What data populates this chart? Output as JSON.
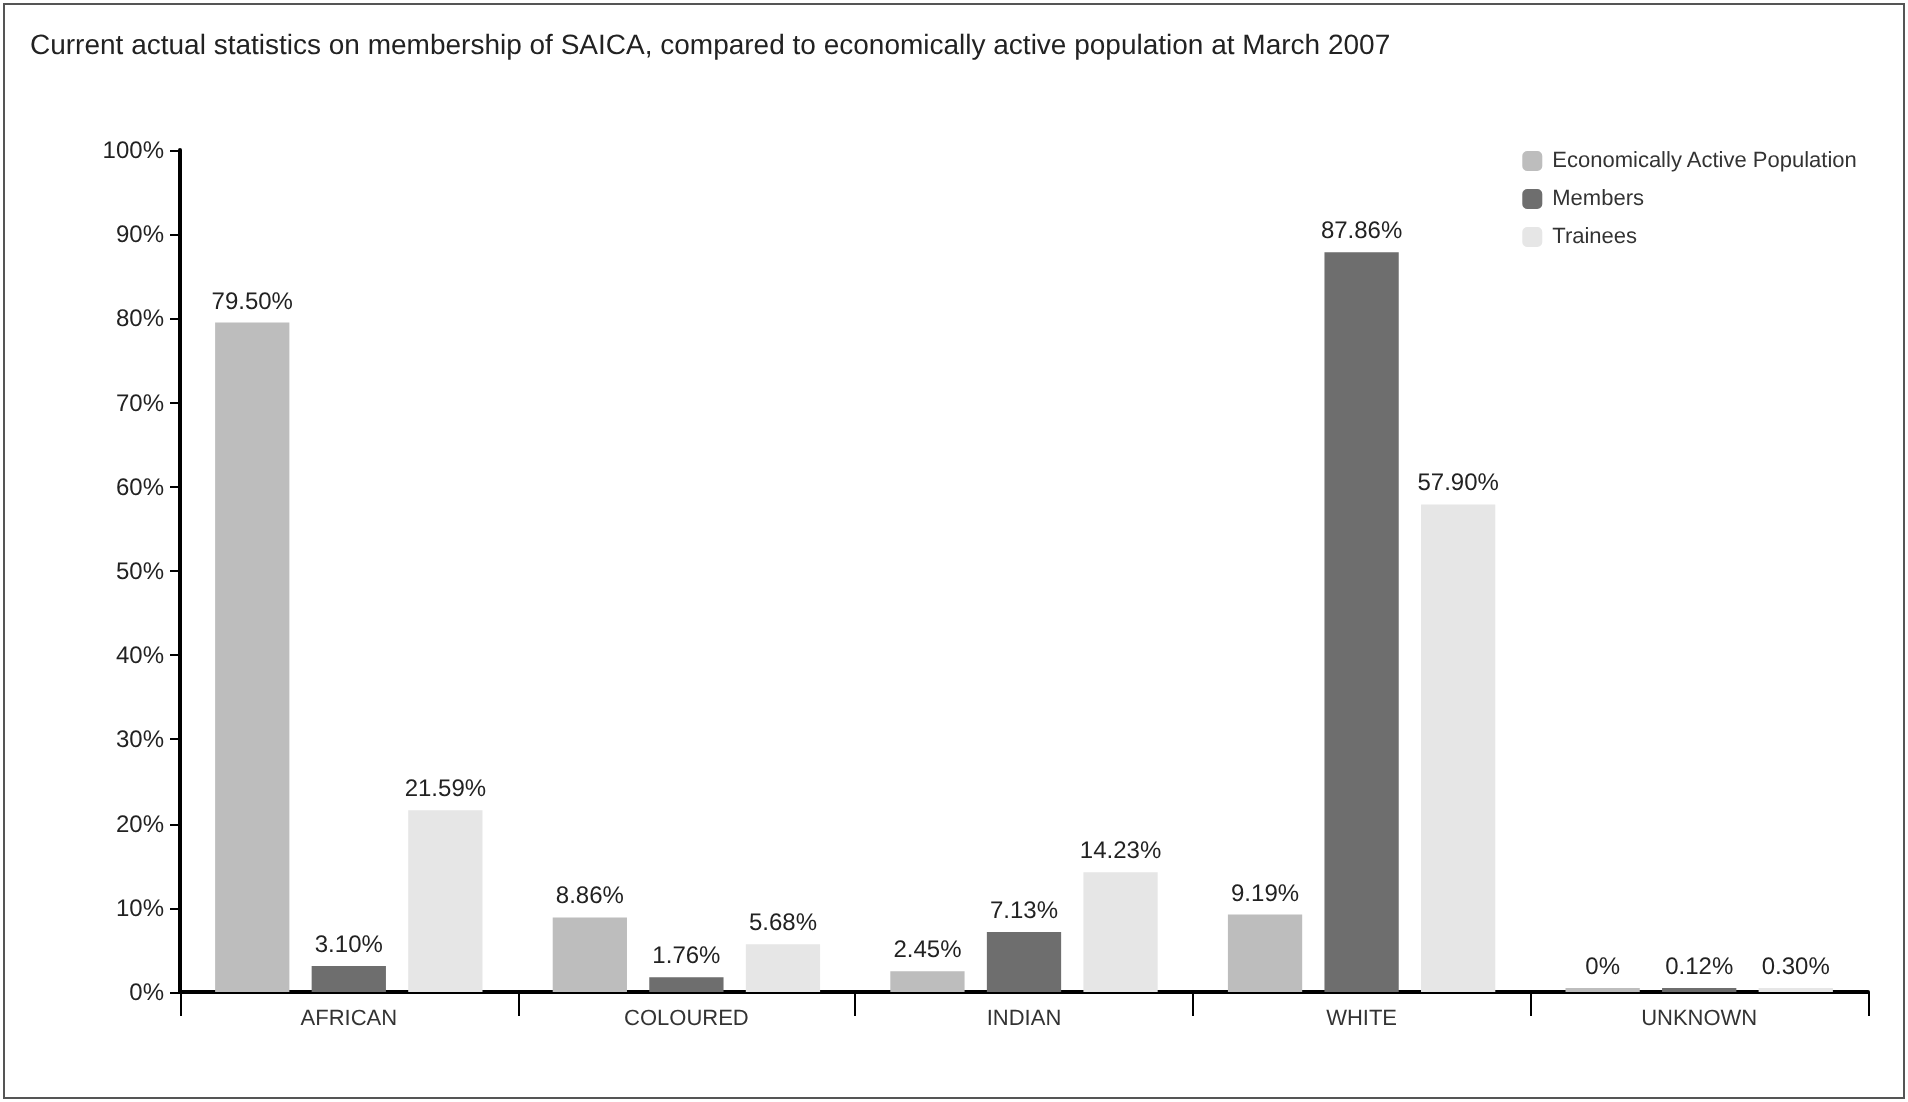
{
  "chart_data": {
    "type": "bar",
    "title": "Current actual statistics on membership of SAICA, compared to economically active population at March 2007",
    "categories": [
      "AFRICAN",
      "COLOURED",
      "INDIAN",
      "WHITE",
      "UNKNOWN"
    ],
    "series": [
      {
        "name": "Economically Active Population",
        "color": "#bdbdbd",
        "values": [
          79.5,
          8.86,
          2.45,
          9.19,
          0
        ],
        "value_labels": [
          "79.50%",
          "8.86%",
          "2.45%",
          "9.19%",
          "0%"
        ]
      },
      {
        "name": "Members",
        "color": "#6e6e6e",
        "values": [
          3.1,
          1.76,
          7.13,
          87.86,
          0.12
        ],
        "value_labels": [
          "3.10%",
          "1.76%",
          "7.13%",
          "87.86%",
          "0.12%"
        ]
      },
      {
        "name": "Trainees",
        "color": "#e6e6e6",
        "values": [
          21.59,
          5.68,
          14.23,
          57.9,
          0.3
        ],
        "value_labels": [
          "21.59%",
          "5.68%",
          "14.23%",
          "57.90%",
          "0.30%"
        ]
      }
    ],
    "ylim": [
      0,
      100
    ],
    "yticks": [
      {
        "value": 0,
        "label": "0%"
      },
      {
        "value": 10,
        "label": "10%"
      },
      {
        "value": 20,
        "label": "20%"
      },
      {
        "value": 30,
        "label": "30%"
      },
      {
        "value": 40,
        "label": "40%"
      },
      {
        "value": 50,
        "label": "50%"
      },
      {
        "value": 60,
        "label": "60%"
      },
      {
        "value": 70,
        "label": "70%"
      },
      {
        "value": 80,
        "label": "80%"
      },
      {
        "value": 90,
        "label": "90%"
      },
      {
        "value": 100,
        "label": "100%"
      }
    ],
    "grid": false,
    "legend": "top right"
  }
}
